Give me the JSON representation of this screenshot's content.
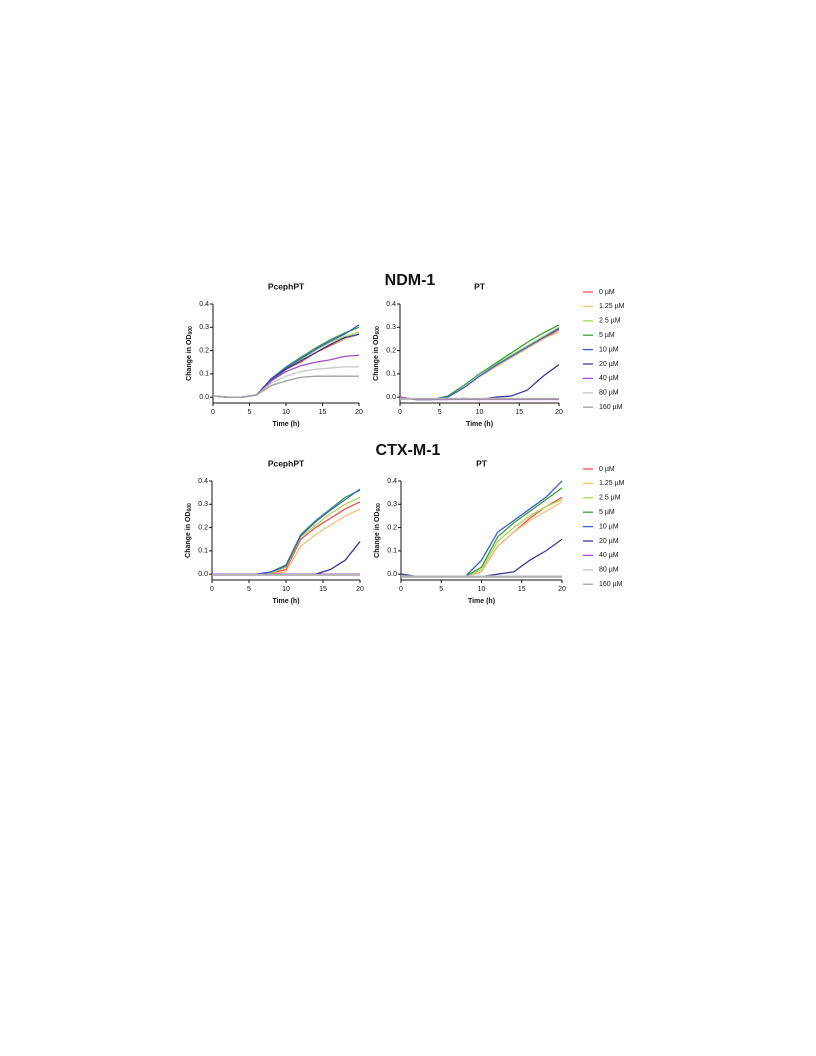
{
  "headings": [
    "NDM-1",
    "CTX-M-1"
  ],
  "chart_data": [
    {
      "type": "line",
      "title": "PcephPT",
      "xlabel": "Time (h)",
      "ylabel": "Change in OD",
      "ylabel_sub": "600",
      "x": [
        0,
        2,
        4,
        6,
        8,
        10,
        12,
        14,
        16,
        18,
        20
      ],
      "xlim": [
        0,
        20
      ],
      "xticks": [
        0,
        5,
        10,
        15,
        20
      ],
      "ylim": [
        -0.025,
        0.4
      ],
      "yticks": [
        {
          "value": 0,
          "label": "0.0"
        },
        0.1,
        0.2,
        0.3,
        0.4
      ],
      "series": [
        {
          "color": "#f0504a",
          "values": [
            0.005,
            0,
            0,
            0.01,
            0.07,
            0.12,
            0.15,
            0.19,
            0.22,
            0.25,
            0.27
          ]
        },
        {
          "color": "#f5c27a",
          "values": [
            0.005,
            0,
            0,
            0.01,
            0.07,
            0.12,
            0.155,
            0.19,
            0.225,
            0.25,
            0.27
          ]
        },
        {
          "color": "#a6dc5a",
          "values": [
            0.005,
            0,
            0,
            0.01,
            0.07,
            0.12,
            0.16,
            0.2,
            0.235,
            0.26,
            0.28
          ]
        },
        {
          "color": "#3aa33a",
          "values": [
            0.005,
            0,
            0,
            0.01,
            0.08,
            0.13,
            0.17,
            0.21,
            0.245,
            0.275,
            0.3
          ]
        },
        {
          "color": "#3a5fd0",
          "values": [
            0.005,
            0,
            0,
            0.01,
            0.08,
            0.125,
            0.165,
            0.205,
            0.24,
            0.27,
            0.31
          ]
        },
        {
          "color": "#3b3a98",
          "values": [
            0.005,
            0,
            0,
            0.01,
            0.075,
            0.12,
            0.155,
            0.19,
            0.225,
            0.255,
            0.27
          ]
        },
        {
          "color": "#a14fd0",
          "values": [
            0.005,
            0,
            0,
            0.01,
            0.07,
            0.11,
            0.135,
            0.15,
            0.16,
            0.175,
            0.18
          ]
        },
        {
          "color": "#c8c8c8",
          "values": [
            0.005,
            0,
            0,
            0.01,
            0.06,
            0.09,
            0.11,
            0.12,
            0.125,
            0.13,
            0.13
          ]
        },
        {
          "color": "#a0a0a0",
          "values": [
            0.005,
            0,
            0,
            0.01,
            0.05,
            0.07,
            0.085,
            0.09,
            0.09,
            0.09,
            0.09
          ]
        }
      ]
    },
    {
      "type": "line",
      "title": "PT",
      "xlabel": "Time (h)",
      "ylabel": "Change in OD",
      "ylabel_sub": "600",
      "x": [
        0,
        2,
        4,
        6,
        8,
        10,
        12,
        14,
        16,
        18,
        20
      ],
      "xlim": [
        0,
        20
      ],
      "xticks": [
        0,
        5,
        10,
        15,
        20
      ],
      "ylim": [
        -0.025,
        0.4
      ],
      "yticks": [
        {
          "value": 0,
          "label": "0.0"
        },
        0.1,
        0.2,
        0.3,
        0.4
      ],
      "series": [
        {
          "name": "0 µM",
          "color": "#f0504a",
          "values": [
            0,
            -0.01,
            -0.01,
            0,
            0.04,
            0.09,
            0.13,
            0.17,
            0.21,
            0.25,
            0.29
          ]
        },
        {
          "name": "1.25 µM",
          "color": "#f5c27a",
          "values": [
            0,
            -0.01,
            -0.01,
            0,
            0.04,
            0.09,
            0.13,
            0.17,
            0.21,
            0.25,
            0.28
          ]
        },
        {
          "name": "2.5 µM",
          "color": "#a6dc5a",
          "values": [
            0,
            -0.01,
            -0.01,
            0,
            0.04,
            0.09,
            0.14,
            0.18,
            0.22,
            0.26,
            0.3
          ]
        },
        {
          "name": "5 µM",
          "color": "#3aa33a",
          "values": [
            0,
            -0.01,
            -0.01,
            0.005,
            0.05,
            0.1,
            0.145,
            0.19,
            0.235,
            0.275,
            0.31
          ]
        },
        {
          "name": "10 µM",
          "color": "#3a5fd0",
          "values": [
            0,
            -0.01,
            -0.01,
            0,
            0.04,
            0.09,
            0.135,
            0.175,
            0.215,
            0.255,
            0.295
          ]
        },
        {
          "name": "20 µM",
          "color": "#3b3a98",
          "values": [
            0,
            -0.01,
            -0.01,
            -0.01,
            -0.005,
            -0.01,
            0,
            0.005,
            0.03,
            0.09,
            0.14
          ]
        },
        {
          "name": "40 µM",
          "color": "#a14fd0",
          "values": [
            0,
            -0.01,
            -0.01,
            -0.01,
            -0.01,
            -0.01,
            -0.01,
            -0.01,
            -0.01,
            -0.01,
            -0.01
          ]
        },
        {
          "name": "80 µM",
          "color": "#c8c8c8",
          "values": [
            -0.005,
            -0.005,
            -0.005,
            -0.005,
            -0.005,
            -0.005,
            -0.005,
            -0.005,
            -0.005,
            -0.005,
            -0.005
          ]
        },
        {
          "name": "160 µM",
          "color": "#a0a0a0",
          "values": [
            -0.008,
            -0.008,
            -0.008,
            -0.008,
            -0.008,
            -0.008,
            -0.008,
            -0.008,
            -0.008,
            -0.008,
            -0.008
          ]
        }
      ]
    },
    {
      "type": "line",
      "title": "PcephPT",
      "xlabel": "Time (h)",
      "ylabel": "Change in OD",
      "ylabel_sub": "600",
      "x": [
        0,
        2,
        4,
        6,
        8,
        10,
        12,
        14,
        16,
        18,
        20
      ],
      "xlim": [
        0,
        20
      ],
      "xticks": [
        0,
        5,
        10,
        15,
        20
      ],
      "ylim": [
        -0.025,
        0.4
      ],
      "yticks": [
        {
          "value": 0,
          "label": "0.0"
        },
        0.1,
        0.2,
        0.3,
        0.4
      ],
      "series": [
        {
          "color": "#f0504a",
          "values": [
            0,
            0,
            0,
            0,
            0.005,
            0.02,
            0.15,
            0.2,
            0.24,
            0.28,
            0.31
          ]
        },
        {
          "color": "#f5c27a",
          "values": [
            0,
            0,
            0,
            0,
            0,
            0.01,
            0.12,
            0.17,
            0.21,
            0.25,
            0.28
          ]
        },
        {
          "color": "#a6dc5a",
          "values": [
            0,
            0,
            0,
            0,
            0.005,
            0.03,
            0.16,
            0.21,
            0.26,
            0.3,
            0.33
          ]
        },
        {
          "color": "#3aa33a",
          "values": [
            0,
            0,
            0,
            0,
            0.01,
            0.04,
            0.17,
            0.23,
            0.28,
            0.33,
            0.36
          ]
        },
        {
          "color": "#3a5fd0",
          "values": [
            0,
            0,
            0,
            0,
            0.01,
            0.035,
            0.165,
            0.225,
            0.275,
            0.32,
            0.365
          ]
        },
        {
          "color": "#3b3a98",
          "values": [
            0,
            0,
            0,
            0,
            0,
            0,
            0,
            0,
            0.02,
            0.06,
            0.14
          ]
        },
        {
          "color": "#a14fd0",
          "values": [
            0,
            0,
            0,
            0,
            0,
            0,
            0,
            0,
            0,
            0,
            0
          ]
        },
        {
          "color": "#c8c8c8",
          "values": [
            -0.002,
            -0.002,
            -0.002,
            -0.002,
            -0.002,
            -0.002,
            -0.002,
            -0.002,
            -0.002,
            -0.002,
            -0.002
          ]
        },
        {
          "color": "#a0a0a0",
          "values": [
            -0.004,
            -0.004,
            -0.004,
            -0.004,
            -0.004,
            -0.004,
            -0.004,
            -0.004,
            -0.004,
            -0.004,
            -0.004
          ]
        }
      ]
    },
    {
      "type": "line",
      "title": "PT",
      "xlabel": "Time (h)",
      "ylabel": "Change in OD",
      "ylabel_sub": "600",
      "x": [
        0,
        2,
        4,
        6,
        8,
        10,
        12,
        14,
        16,
        18,
        20
      ],
      "xlim": [
        0,
        20
      ],
      "xticks": [
        0,
        5,
        10,
        15,
        20
      ],
      "ylim": [
        -0.025,
        0.4
      ],
      "yticks": [
        {
          "value": 0,
          "label": "0.0"
        },
        0.1,
        0.2,
        0.3,
        0.4
      ],
      "series": [
        {
          "name": "0 µM",
          "color": "#f0504a",
          "values": [
            0,
            -0.01,
            -0.01,
            -0.01,
            -0.01,
            0.01,
            0.12,
            0.18,
            0.24,
            0.29,
            0.33
          ]
        },
        {
          "name": "1.25 µM",
          "color": "#f5c27a",
          "values": [
            0,
            -0.01,
            -0.01,
            -0.01,
            -0.01,
            0.01,
            0.12,
            0.18,
            0.23,
            0.27,
            0.31
          ]
        },
        {
          "name": "2.5 µM",
          "color": "#a6dc5a",
          "values": [
            0,
            -0.01,
            -0.01,
            -0.01,
            -0.01,
            0.02,
            0.14,
            0.2,
            0.25,
            0.29,
            0.32
          ]
        },
        {
          "name": "5 µM",
          "color": "#3aa33a",
          "values": [
            0,
            -0.01,
            -0.01,
            -0.01,
            -0.01,
            0.03,
            0.16,
            0.22,
            0.27,
            0.32,
            0.37
          ]
        },
        {
          "name": "10 µM",
          "color": "#3a5fd0",
          "values": [
            0,
            -0.01,
            -0.01,
            -0.01,
            -0.01,
            0.06,
            0.18,
            0.23,
            0.28,
            0.33,
            0.4
          ]
        },
        {
          "name": "20 µM",
          "color": "#3b3a98",
          "values": [
            0,
            -0.01,
            -0.01,
            -0.01,
            -0.01,
            -0.01,
            0,
            0.01,
            0.06,
            0.1,
            0.15
          ]
        },
        {
          "name": "40 µM",
          "color": "#a14fd0",
          "values": [
            -0.01,
            -0.01,
            -0.01,
            -0.01,
            -0.01,
            -0.01,
            -0.01,
            -0.01,
            -0.01,
            -0.01,
            -0.01
          ]
        },
        {
          "name": "80 µM",
          "color": "#c8c8c8",
          "values": [
            -0.008,
            -0.008,
            -0.008,
            -0.008,
            -0.008,
            -0.008,
            -0.008,
            -0.008,
            -0.008,
            -0.008,
            -0.008
          ]
        },
        {
          "name": "160 µM",
          "color": "#a0a0a0",
          "values": [
            -0.012,
            -0.012,
            -0.012,
            -0.012,
            -0.012,
            -0.012,
            -0.012,
            -0.012,
            -0.012,
            -0.012,
            -0.012
          ]
        }
      ]
    }
  ]
}
